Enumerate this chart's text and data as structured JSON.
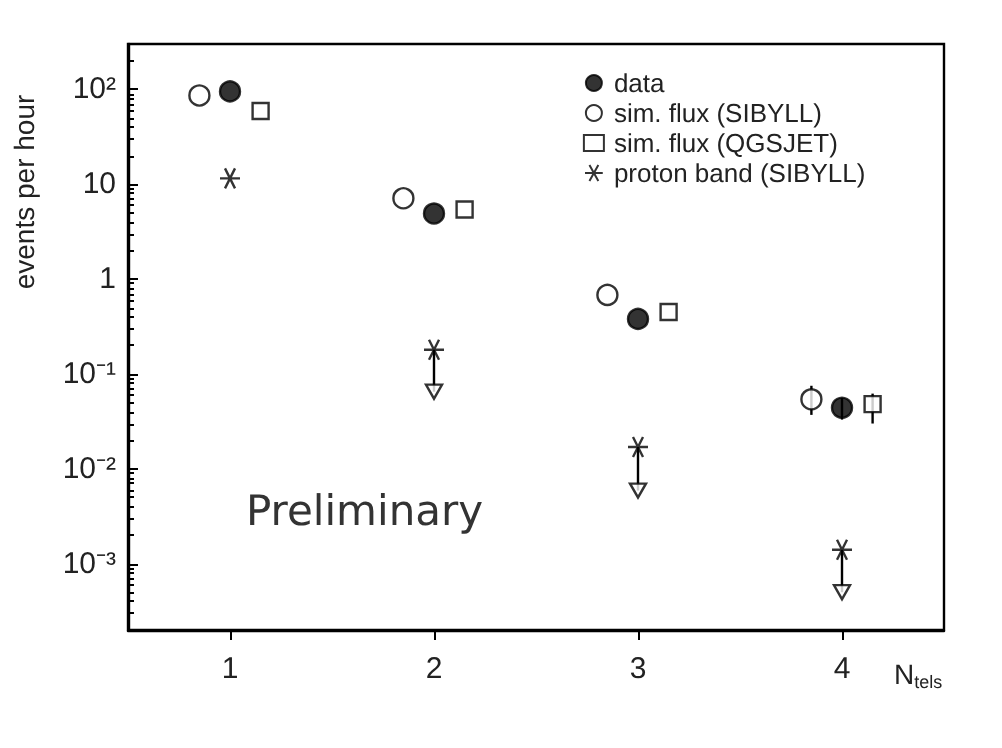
{
  "chart_data": {
    "type": "scatter",
    "xlabel": "N$_{tels}$",
    "ylabel": "events per hour",
    "annotations": [
      "Preliminary"
    ],
    "xlim": [
      0.5,
      4.5
    ],
    "xticks": [
      1,
      2,
      3,
      4
    ],
    "ylim": [
      0.0002,
      300
    ],
    "log": "y",
    "yticks": [
      {
        "value": 0.001,
        "label": "10⁻³"
      },
      {
        "value": 0.01,
        "label": "10⁻²"
      },
      {
        "value": 0.1,
        "label": "10⁻¹"
      },
      1,
      10,
      {
        "value": 100,
        "label": "10²"
      }
    ],
    "grid": false,
    "legend": "top right",
    "series": [
      {
        "name": "data",
        "color": "#000000",
        "marker": "circle",
        "x": [
          1,
          2,
          3,
          4
        ],
        "values": [
          95,
          4.9,
          0.38,
          0.044
        ],
        "errors": [
          null,
          null,
          null,
          [
            0.033,
            0.056
          ]
        ]
      },
      {
        "name": "sim. flux (SIBYLL)",
        "color": "#ffffff",
        "marker": "circle",
        "x": [
          0.85,
          1.85,
          2.85,
          3.85
        ],
        "values": [
          86,
          7.1,
          0.68,
          0.054
        ],
        "errors": [
          null,
          null,
          null,
          [
            0.037,
            0.075
          ]
        ]
      },
      {
        "name": "sim. flux (QGSJET)",
        "color": "#ffffff",
        "marker": "square",
        "x": [
          1.15,
          2.15,
          3.15,
          4.15
        ],
        "values": [
          59,
          5.4,
          0.45,
          0.048
        ],
        "errors": [
          null,
          null,
          null,
          [
            0.03,
            0.062
          ]
        ]
      },
      {
        "color": "#ffffff",
        "marker": "triangle",
        "x": [
          2,
          3,
          4
        ],
        "values": [
          0.065,
          0.0059,
          0.0005
        ]
      },
      {
        "name": "proton band (SIBYLL)",
        "color": "#000000",
        "marker": "cross",
        "x": [
          1,
          2,
          3,
          4
        ],
        "values": [
          11.5,
          0.18,
          0.017,
          0.0014
        ],
        "errors": [
          null,
          [
            0.065,
            0.18
          ],
          [
            0.0059,
            0.017
          ],
          [
            0.0005,
            0.0014
          ]
        ]
      }
    ]
  }
}
